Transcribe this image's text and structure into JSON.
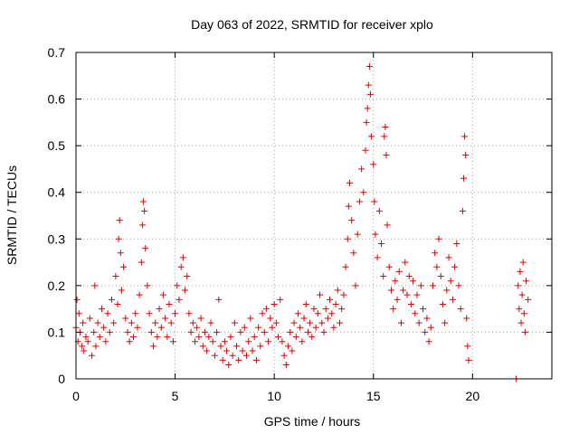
{
  "chart_data": {
    "type": "scatter",
    "title": "Day 063 of 2022, SRMTID for receiver xplo",
    "xlabel": "GPS time / hours",
    "ylabel": "SRMTID / TECUs",
    "xlim": [
      0,
      24
    ],
    "ylim": [
      0,
      0.7
    ],
    "xticks": [
      0,
      5,
      10,
      15,
      20
    ],
    "yticks": [
      0,
      0.1,
      0.2,
      0.3,
      0.4,
      0.5,
      0.6,
      0.7
    ],
    "xtick_labels": [
      "0",
      "5",
      "10",
      "15",
      "20"
    ],
    "ytick_labels": [
      "0",
      "0.1",
      "0.2",
      "0.3",
      "0.4",
      "0.5",
      "0.6",
      "0.7"
    ],
    "grid": true,
    "marker": "+",
    "color": "#e00000",
    "series": [
      {
        "name": "SRMTID",
        "points": [
          [
            0.0,
            0.11
          ],
          [
            0.05,
            0.17
          ],
          [
            0.1,
            0.08
          ],
          [
            0.15,
            0.14
          ],
          [
            0.2,
            0.1
          ],
          [
            0.3,
            0.07
          ],
          [
            0.35,
            0.12
          ],
          [
            0.4,
            0.06
          ],
          [
            0.5,
            0.09
          ],
          [
            0.6,
            0.08
          ],
          [
            0.7,
            0.13
          ],
          [
            0.8,
            0.05
          ],
          [
            0.9,
            0.1
          ],
          [
            0.95,
            0.2
          ],
          [
            1.0,
            0.07
          ],
          [
            1.1,
            0.12
          ],
          [
            1.2,
            0.09
          ],
          [
            1.3,
            0.15
          ],
          [
            1.4,
            0.11
          ],
          [
            1.5,
            0.08
          ],
          [
            1.6,
            0.14
          ],
          [
            1.7,
            0.1
          ],
          [
            1.8,
            0.17
          ],
          [
            1.9,
            0.12
          ],
          [
            2.0,
            0.22
          ],
          [
            2.1,
            0.16
          ],
          [
            2.15,
            0.3
          ],
          [
            2.2,
            0.34
          ],
          [
            2.25,
            0.27
          ],
          [
            2.3,
            0.19
          ],
          [
            2.4,
            0.24
          ],
          [
            2.5,
            0.13
          ],
          [
            2.6,
            0.1
          ],
          [
            2.7,
            0.08
          ],
          [
            2.8,
            0.12
          ],
          [
            2.9,
            0.09
          ],
          [
            3.0,
            0.14
          ],
          [
            3.1,
            0.11
          ],
          [
            3.2,
            0.18
          ],
          [
            3.3,
            0.25
          ],
          [
            3.35,
            0.33
          ],
          [
            3.4,
            0.38
          ],
          [
            3.45,
            0.36
          ],
          [
            3.5,
            0.28
          ],
          [
            3.6,
            0.2
          ],
          [
            3.7,
            0.14
          ],
          [
            3.8,
            0.1
          ],
          [
            3.9,
            0.07
          ],
          [
            4.0,
            0.12
          ],
          [
            4.1,
            0.09
          ],
          [
            4.2,
            0.15
          ],
          [
            4.3,
            0.11
          ],
          [
            4.4,
            0.18
          ],
          [
            4.5,
            0.13
          ],
          [
            4.6,
            0.09
          ],
          [
            4.7,
            0.16
          ],
          [
            4.8,
            0.12
          ],
          [
            4.9,
            0.08
          ],
          [
            5.0,
            0.14
          ],
          [
            5.1,
            0.2
          ],
          [
            5.2,
            0.17
          ],
          [
            5.3,
            0.24
          ],
          [
            5.4,
            0.26
          ],
          [
            5.5,
            0.19
          ],
          [
            5.6,
            0.22
          ],
          [
            5.7,
            0.14
          ],
          [
            5.8,
            0.1
          ],
          [
            5.9,
            0.12
          ],
          [
            6.0,
            0.08
          ],
          [
            6.1,
            0.11
          ],
          [
            6.2,
            0.09
          ],
          [
            6.3,
            0.13
          ],
          [
            6.4,
            0.07
          ],
          [
            6.5,
            0.1
          ],
          [
            6.6,
            0.06
          ],
          [
            6.7,
            0.09
          ],
          [
            6.8,
            0.12
          ],
          [
            6.9,
            0.08
          ],
          [
            7.0,
            0.05
          ],
          [
            7.1,
            0.1
          ],
          [
            7.2,
            0.17
          ],
          [
            7.3,
            0.07
          ],
          [
            7.4,
            0.04
          ],
          [
            7.5,
            0.08
          ],
          [
            7.6,
            0.06
          ],
          [
            7.7,
            0.03
          ],
          [
            7.8,
            0.09
          ],
          [
            7.9,
            0.05
          ],
          [
            8.0,
            0.12
          ],
          [
            8.1,
            0.07
          ],
          [
            8.2,
            0.04
          ],
          [
            8.3,
            0.1
          ],
          [
            8.4,
            0.06
          ],
          [
            8.5,
            0.11
          ],
          [
            8.6,
            0.05
          ],
          [
            8.7,
            0.08
          ],
          [
            8.8,
            0.13
          ],
          [
            8.9,
            0.06
          ],
          [
            9.0,
            0.09
          ],
          [
            9.1,
            0.04
          ],
          [
            9.2,
            0.11
          ],
          [
            9.3,
            0.07
          ],
          [
            9.4,
            0.14
          ],
          [
            9.5,
            0.1
          ],
          [
            9.6,
            0.15
          ],
          [
            9.7,
            0.08
          ],
          [
            9.8,
            0.13
          ],
          [
            9.9,
            0.11
          ],
          [
            10.0,
            0.16
          ],
          [
            10.1,
            0.12
          ],
          [
            10.2,
            0.09
          ],
          [
            10.3,
            0.17
          ],
          [
            10.4,
            0.08
          ],
          [
            10.5,
            0.05
          ],
          [
            10.6,
            0.03
          ],
          [
            10.7,
            0.07
          ],
          [
            10.8,
            0.1
          ],
          [
            10.9,
            0.06
          ],
          [
            11.0,
            0.12
          ],
          [
            11.1,
            0.09
          ],
          [
            11.2,
            0.14
          ],
          [
            11.3,
            0.11
          ],
          [
            11.4,
            0.08
          ],
          [
            11.5,
            0.13
          ],
          [
            11.6,
            0.16
          ],
          [
            11.7,
            0.1
          ],
          [
            11.8,
            0.12
          ],
          [
            11.9,
            0.09
          ],
          [
            12.0,
            0.15
          ],
          [
            12.1,
            0.11
          ],
          [
            12.2,
            0.14
          ],
          [
            12.3,
            0.18
          ],
          [
            12.4,
            0.12
          ],
          [
            12.5,
            0.1
          ],
          [
            12.6,
            0.15
          ],
          [
            12.7,
            0.13
          ],
          [
            12.8,
            0.17
          ],
          [
            12.9,
            0.14
          ],
          [
            13.0,
            0.11
          ],
          [
            13.1,
            0.16
          ],
          [
            13.2,
            0.19
          ],
          [
            13.3,
            0.12
          ],
          [
            13.4,
            0.15
          ],
          [
            13.5,
            0.18
          ],
          [
            13.6,
            0.24
          ],
          [
            13.7,
            0.3
          ],
          [
            13.75,
            0.37
          ],
          [
            13.8,
            0.42
          ],
          [
            13.9,
            0.34
          ],
          [
            14.0,
            0.27
          ],
          [
            14.1,
            0.2
          ],
          [
            14.2,
            0.31
          ],
          [
            14.3,
            0.38
          ],
          [
            14.4,
            0.45
          ],
          [
            14.5,
            0.4
          ],
          [
            14.6,
            0.49
          ],
          [
            14.65,
            0.55
          ],
          [
            14.7,
            0.58
          ],
          [
            14.75,
            0.63
          ],
          [
            14.8,
            0.67
          ],
          [
            14.85,
            0.61
          ],
          [
            14.9,
            0.52
          ],
          [
            15.0,
            0.46
          ],
          [
            15.05,
            0.38
          ],
          [
            15.1,
            0.31
          ],
          [
            15.2,
            0.26
          ],
          [
            15.3,
            0.36
          ],
          [
            15.4,
            0.29
          ],
          [
            15.5,
            0.22
          ],
          [
            15.55,
            0.52
          ],
          [
            15.6,
            0.54
          ],
          [
            15.65,
            0.48
          ],
          [
            15.7,
            0.33
          ],
          [
            15.8,
            0.24
          ],
          [
            15.9,
            0.19
          ],
          [
            16.0,
            0.15
          ],
          [
            16.1,
            0.21
          ],
          [
            16.2,
            0.17
          ],
          [
            16.3,
            0.23
          ],
          [
            16.4,
            0.12
          ],
          [
            16.5,
            0.19
          ],
          [
            16.6,
            0.25
          ],
          [
            16.7,
            0.18
          ],
          [
            16.8,
            0.22
          ],
          [
            16.9,
            0.16
          ],
          [
            17.0,
            0.21
          ],
          [
            17.1,
            0.14
          ],
          [
            17.2,
            0.18
          ],
          [
            17.3,
            0.12
          ],
          [
            17.4,
            0.2
          ],
          [
            17.5,
            0.15
          ],
          [
            17.6,
            0.1
          ],
          [
            17.7,
            0.13
          ],
          [
            17.8,
            0.08
          ],
          [
            17.9,
            0.11
          ],
          [
            18.0,
            0.2
          ],
          [
            18.1,
            0.27
          ],
          [
            18.2,
            0.24
          ],
          [
            18.3,
            0.3
          ],
          [
            18.4,
            0.22
          ],
          [
            18.5,
            0.16
          ],
          [
            18.6,
            0.12
          ],
          [
            18.7,
            0.19
          ],
          [
            18.8,
            0.26
          ],
          [
            18.9,
            0.21
          ],
          [
            19.0,
            0.17
          ],
          [
            19.1,
            0.24
          ],
          [
            19.2,
            0.29
          ],
          [
            19.3,
            0.2
          ],
          [
            19.4,
            0.15
          ],
          [
            19.5,
            0.36
          ],
          [
            19.55,
            0.43
          ],
          [
            19.6,
            0.52
          ],
          [
            19.65,
            0.48
          ],
          [
            19.7,
            0.13
          ],
          [
            19.75,
            0.07
          ],
          [
            19.8,
            0.04
          ],
          [
            22.2,
            0.0
          ],
          [
            22.3,
            0.2
          ],
          [
            22.35,
            0.15
          ],
          [
            22.4,
            0.23
          ],
          [
            22.45,
            0.12
          ],
          [
            22.5,
            0.18
          ],
          [
            22.55,
            0.25
          ],
          [
            22.6,
            0.14
          ],
          [
            22.65,
            0.1
          ],
          [
            22.7,
            0.21
          ],
          [
            22.8,
            0.17
          ]
        ]
      }
    ]
  }
}
